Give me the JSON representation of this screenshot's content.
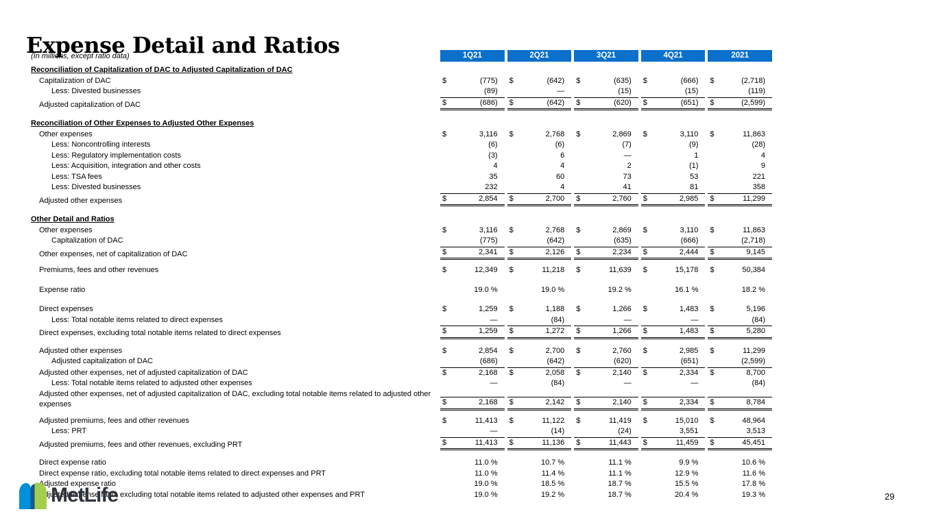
{
  "slide": {
    "title": "Expense Detail and Ratios",
    "units_note": "(In millions, except ratio data)",
    "page_number": "29",
    "logo": {
      "text": "MetLife",
      "icon": "metlife-m-mark",
      "colors": {
        "blue": "#0090DA",
        "navy": "#16588f",
        "green": "#A4CE4E",
        "text": "#2e343b"
      }
    }
  },
  "table": {
    "header_color": "#0b70cb",
    "currency_symbol": "$",
    "columns": [
      "1Q21",
      "2Q21",
      "3Q21",
      "4Q21",
      "2021"
    ],
    "rows": [
      {
        "label": "Reconciliation of Capitalization of DAC to Adjusted Capitalization of DAC",
        "type": "section",
        "indent": 0,
        "gap": 5,
        "dollar": false,
        "values": null
      },
      {
        "label": "Capitalization of DAC",
        "type": "data",
        "indent": 1,
        "gap": 0,
        "dollar": true,
        "values": [
          "(775)",
          "(642)",
          "(635)",
          "(666)",
          "(2,718)"
        ]
      },
      {
        "label": "Less: Divested businesses",
        "type": "data",
        "indent": 2,
        "gap": 0,
        "dollar": false,
        "values": [
          "(89)",
          "—",
          "(15)",
          "(15)",
          "(119)"
        ]
      },
      {
        "label": "Adjusted capitalization of DAC",
        "type": "total",
        "indent": 1,
        "gap": 0,
        "dollar": true,
        "values": [
          "(686)",
          "(642)",
          "(620)",
          "(651)",
          "(2,599)"
        ]
      },
      {
        "label": "Reconciliation of Other Expenses to Adjusted Other Expenses",
        "type": "section",
        "indent": 0,
        "gap": 12,
        "dollar": false,
        "values": null
      },
      {
        "label": "Other expenses",
        "type": "data",
        "indent": 1,
        "gap": 0,
        "dollar": true,
        "values": [
          "3,116",
          "2,768",
          "2,869",
          "3,110",
          "11,863"
        ]
      },
      {
        "label": "Less: Noncontrolling interests",
        "type": "data",
        "indent": 2,
        "gap": 0,
        "dollar": false,
        "values": [
          "(6)",
          "(6)",
          "(7)",
          "(9)",
          "(28)"
        ]
      },
      {
        "label": "Less: Regulatory implementation costs",
        "type": "data",
        "indent": 2,
        "gap": 0,
        "dollar": false,
        "values": [
          "(3)",
          "6",
          "—",
          "1",
          "4"
        ]
      },
      {
        "label": "Less: Acquisition, integration and other costs",
        "type": "data",
        "indent": 2,
        "gap": 0,
        "dollar": false,
        "values": [
          "4",
          "4",
          "2",
          "(1)",
          "9"
        ]
      },
      {
        "label": "Less: TSA fees",
        "type": "data",
        "indent": 2,
        "gap": 0,
        "dollar": false,
        "values": [
          "35",
          "60",
          "73",
          "53",
          "221"
        ]
      },
      {
        "label": "Less: Divested businesses",
        "type": "data",
        "indent": 2,
        "gap": 0,
        "dollar": false,
        "values": [
          "232",
          "4",
          "41",
          "81",
          "358"
        ]
      },
      {
        "label": "Adjusted other expenses",
        "type": "total",
        "indent": 1,
        "gap": 0,
        "dollar": true,
        "values": [
          "2,854",
          "2,700",
          "2,760",
          "2,985",
          "11,299"
        ]
      },
      {
        "label": "Other Detail and Ratios",
        "type": "section",
        "indent": 0,
        "gap": 12,
        "dollar": false,
        "values": null
      },
      {
        "label": "Other expenses",
        "type": "data",
        "indent": 1,
        "gap": 0,
        "dollar": true,
        "values": [
          "3,116",
          "2,768",
          "2,869",
          "3,110",
          "11,863"
        ]
      },
      {
        "label": "Capitalization of DAC",
        "type": "data",
        "indent": 2,
        "gap": 0,
        "dollar": false,
        "values": [
          "(775)",
          "(642)",
          "(635)",
          "(666)",
          "(2,718)"
        ]
      },
      {
        "label": "Other expenses, net of capitalization of DAC",
        "type": "total",
        "indent": 1,
        "gap": 0,
        "dollar": true,
        "values": [
          "2,341",
          "2,126",
          "2,234",
          "2,444",
          "9,145"
        ]
      },
      {
        "label": "Premiums, fees and other revenues",
        "type": "data",
        "indent": 1,
        "gap": 8,
        "dollar": true,
        "values": [
          "12,349",
          "11,218",
          "11,639",
          "15,178",
          "50,384"
        ]
      },
      {
        "label": "Expense ratio",
        "type": "ratio",
        "indent": 1,
        "gap": 13,
        "dollar": false,
        "values": [
          "19.0 %",
          "19.0 %",
          "19.2 %",
          "16.1 %",
          "18.2 %"
        ]
      },
      {
        "label": "Direct expenses",
        "type": "data",
        "indent": 1,
        "gap": 13,
        "dollar": true,
        "values": [
          "1,259",
          "1,188",
          "1,266",
          "1,483",
          "5,196"
        ]
      },
      {
        "label": "Less: Total notable items related to direct expenses",
        "type": "data",
        "indent": 2,
        "gap": 0,
        "dollar": false,
        "values": [
          "—",
          "(84)",
          "—",
          "—",
          "(84)"
        ]
      },
      {
        "label": "Direct expenses, excluding total notable items related to direct expenses",
        "type": "total",
        "indent": 1,
        "gap": 0,
        "dollar": true,
        "values": [
          "1,259",
          "1,272",
          "1,266",
          "1,483",
          "5,280"
        ]
      },
      {
        "label": "Adjusted other expenses",
        "type": "data",
        "indent": 1,
        "gap": 10,
        "dollar": true,
        "values": [
          "2,854",
          "2,700",
          "2,760",
          "2,985",
          "11,299"
        ]
      },
      {
        "label": "Adjusted capitalization of DAC",
        "type": "data",
        "indent": 2,
        "gap": 0,
        "dollar": false,
        "values": [
          "(686)",
          "(642)",
          "(620)",
          "(651)",
          "(2,599)"
        ]
      },
      {
        "label": "Adjusted other expenses, net of adjusted capitalization of DAC",
        "type": "topline",
        "indent": 1,
        "gap": 0,
        "dollar": true,
        "values": [
          "2,168",
          "2,058",
          "2,140",
          "2,334",
          "8,700"
        ]
      },
      {
        "label": "Less: Total notable items related to adjusted other expenses",
        "type": "data",
        "indent": 2,
        "gap": 0,
        "dollar": false,
        "values": [
          "—",
          "(84)",
          "—",
          "—",
          "(84)"
        ]
      },
      {
        "label": "Adjusted other expenses, net of adjusted capitalization of DAC, excluding total notable items related to adjusted other expenses",
        "type": "total",
        "indent": 1,
        "gap": 0,
        "dollar": true,
        "values": [
          "2,168",
          "2,142",
          "2,140",
          "2,334",
          "8,784"
        ]
      },
      {
        "label": "Adjusted premiums, fees and other revenues",
        "type": "data",
        "indent": 1,
        "gap": 8,
        "dollar": true,
        "values": [
          "11,413",
          "11,122",
          "11,419",
          "15,010",
          "48,964"
        ]
      },
      {
        "label": "Less: PRT",
        "type": "data",
        "indent": 2,
        "gap": 0,
        "dollar": false,
        "values": [
          "—",
          "(14)",
          "(24)",
          "3,551",
          "3,513"
        ]
      },
      {
        "label": "Adjusted premiums, fees and other revenues, excluding PRT",
        "type": "total",
        "indent": 1,
        "gap": 0,
        "dollar": true,
        "values": [
          "11,413",
          "11,136",
          "11,443",
          "11,459",
          "45,451"
        ]
      },
      {
        "label": "Direct expense ratio",
        "type": "ratio",
        "indent": 1,
        "gap": 11,
        "dollar": false,
        "values": [
          "11.0 %",
          "10.7 %",
          "11.1 %",
          "9.9 %",
          "10.6 %"
        ]
      },
      {
        "label": "Direct expense ratio, excluding total notable items related to direct expenses and PRT",
        "type": "ratio",
        "indent": 1,
        "gap": 0,
        "dollar": false,
        "values": [
          "11.0 %",
          "11.4 %",
          "11.1 %",
          "12.9 %",
          "11.6 %"
        ]
      },
      {
        "label": "Adjusted expense ratio",
        "type": "ratio",
        "indent": 1,
        "gap": 0,
        "dollar": false,
        "values": [
          "19.0 %",
          "18.5 %",
          "18.7 %",
          "15.5 %",
          "17.8 %"
        ]
      },
      {
        "label": "Adjusted expense ratio, excluding total notable items related to adjusted other expenses and PRT",
        "type": "ratio",
        "indent": 1,
        "gap": 0,
        "dollar": false,
        "values": [
          "19.0 %",
          "19.2 %",
          "18.7 %",
          "20.4 %",
          "19.3 %"
        ]
      }
    ]
  }
}
